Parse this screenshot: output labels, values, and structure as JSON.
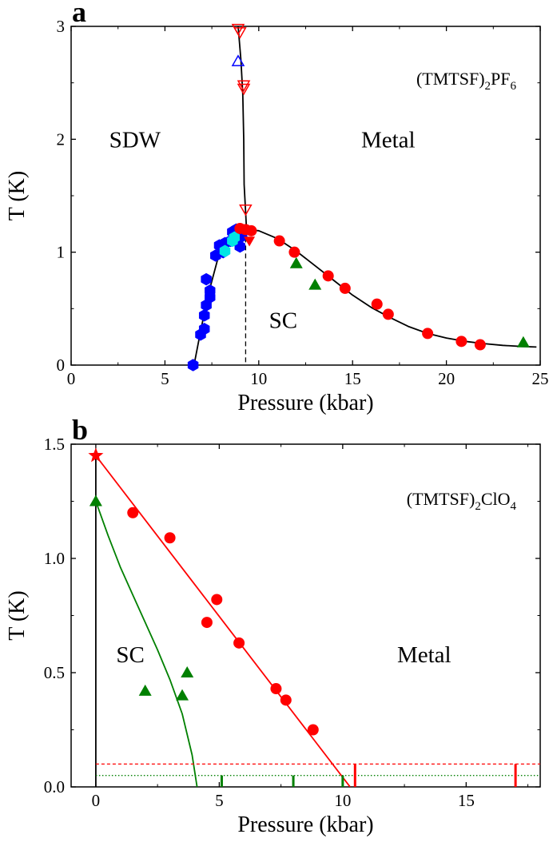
{
  "chart_data": [
    {
      "panel": "a",
      "type": "scatter",
      "compound": {
        "base": "(TMTSF)",
        "sub1": "2",
        "mid": "PF",
        "sub2": "6"
      },
      "xlabel": "Pressure (kbar)",
      "ylabel": "T (K)",
      "xlim": [
        0,
        25
      ],
      "ylim": [
        0,
        3
      ],
      "xticks": [
        0,
        5,
        10,
        15,
        20,
        25
      ],
      "yticks": [
        0,
        1,
        2,
        3
      ],
      "grid": false,
      "regions": [
        {
          "text": "SDW",
          "x": 3.4,
          "y": 2.0
        },
        {
          "text": "Metal",
          "x": 16.9,
          "y": 2.0
        },
        {
          "text": "SC",
          "x": 11.3,
          "y": 0.4
        }
      ],
      "series": [
        {
          "marker": "hexagon",
          "color": "#0000ff",
          "points": [
            [
              6.5,
              0.0
            ],
            [
              6.9,
              0.27
            ],
            [
              7.1,
              0.32
            ],
            [
              7.1,
              0.44
            ],
            [
              7.2,
              0.53
            ],
            [
              7.4,
              0.6
            ],
            [
              7.2,
              0.76
            ],
            [
              7.4,
              0.66
            ],
            [
              7.7,
              0.97
            ],
            [
              7.9,
              1.06
            ],
            [
              8.2,
              1.08
            ],
            [
              8.1,
              1.0
            ],
            [
              8.5,
              1.1
            ],
            [
              8.6,
              1.18
            ],
            [
              8.8,
              1.2
            ],
            [
              9.0,
              1.05
            ],
            [
              9.0,
              1.13
            ],
            [
              9.1,
              1.15
            ]
          ]
        },
        {
          "marker": "hexagon",
          "color": "#00e5e5",
          "points": [
            [
              8.2,
              1.01
            ],
            [
              8.6,
              1.1
            ],
            [
              8.7,
              1.13
            ]
          ]
        },
        {
          "marker": "circle",
          "color": "#ff0000",
          "points": [
            [
              9.0,
              1.21
            ],
            [
              9.3,
              1.2
            ],
            [
              9.6,
              1.19
            ],
            [
              11.1,
              1.1
            ],
            [
              11.9,
              1.0
            ],
            [
              13.7,
              0.79
            ],
            [
              14.6,
              0.68
            ],
            [
              16.3,
              0.54
            ],
            [
              16.9,
              0.45
            ],
            [
              19.0,
              0.28
            ],
            [
              20.8,
              0.21
            ],
            [
              21.8,
              0.18
            ]
          ]
        },
        {
          "marker": "triangle-down",
          "color": "#ff0000",
          "points": [
            [
              9.5,
              1.1
            ]
          ]
        },
        {
          "marker": "triangle-down-open",
          "color": "#ff0000",
          "points": [
            [
              8.9,
              2.98
            ],
            [
              9.0,
              2.95
            ],
            [
              9.2,
              2.48
            ],
            [
              9.2,
              2.45
            ],
            [
              9.3,
              1.38
            ]
          ]
        },
        {
          "marker": "triangle-up-open",
          "color": "#0000ff",
          "points": [
            [
              8.9,
              2.69
            ]
          ]
        },
        {
          "marker": "triangle-up",
          "color": "#008000",
          "points": [
            [
              12.0,
              0.9
            ],
            [
              13.0,
              0.71
            ],
            [
              24.1,
              0.2
            ]
          ]
        }
      ],
      "curves": [
        {
          "style": "solid",
          "color": "#000000",
          "points": [
            [
              6.55,
              0.0
            ],
            [
              6.9,
              0.3
            ],
            [
              7.3,
              0.62
            ],
            [
              7.8,
              0.93
            ],
            [
              8.3,
              1.08
            ],
            [
              8.8,
              1.16
            ],
            [
              9.3,
              1.2
            ]
          ]
        },
        {
          "style": "solid",
          "color": "#000000",
          "points": [
            [
              8.9,
              3.0
            ],
            [
              9.05,
              2.7
            ],
            [
              9.15,
              2.4
            ],
            [
              9.2,
              2.0
            ],
            [
              9.22,
              1.6
            ],
            [
              9.3,
              1.35
            ],
            [
              9.35,
              1.2
            ]
          ]
        },
        {
          "style": "solid",
          "color": "#000000",
          "points": [
            [
              9.3,
              1.2
            ],
            [
              10.0,
              1.19
            ],
            [
              11.0,
              1.12
            ],
            [
              12.0,
              1.01
            ],
            [
              13.0,
              0.88
            ],
            [
              14.0,
              0.75
            ],
            [
              15.0,
              0.62
            ],
            [
              16.0,
              0.51
            ],
            [
              17.0,
              0.42
            ],
            [
              18.0,
              0.34
            ],
            [
              19.0,
              0.28
            ],
            [
              20.0,
              0.24
            ],
            [
              21.0,
              0.21
            ],
            [
              22.0,
              0.19
            ],
            [
              23.0,
              0.175
            ],
            [
              24.0,
              0.165
            ],
            [
              24.8,
              0.16
            ]
          ]
        },
        {
          "style": "dashed",
          "color": "#000000",
          "points": [
            [
              9.3,
              1.2
            ],
            [
              9.3,
              0.0
            ]
          ]
        }
      ]
    },
    {
      "panel": "b",
      "type": "scatter",
      "compound": {
        "base": "(TMTSF)",
        "sub1": "2",
        "mid": "ClO",
        "sub2": "4"
      },
      "xlabel": "Pressure (kbar)",
      "ylabel": "T (K)",
      "xlim": [
        -1,
        18
      ],
      "ylim": [
        0,
        1.5
      ],
      "xticks": [
        0,
        5,
        10,
        15
      ],
      "yticks": [
        0.0,
        0.5,
        1.0,
        1.5
      ],
      "ytick_labels": [
        "0.0",
        "0.5",
        "1.0",
        "1.5"
      ],
      "grid": false,
      "regions": [
        {
          "text": "SC",
          "x": 1.4,
          "y": 0.58
        },
        {
          "text": "Metal",
          "x": 13.3,
          "y": 0.58
        }
      ],
      "series": [
        {
          "marker": "star",
          "color": "#ff0000",
          "points": [
            [
              0.0,
              1.45
            ]
          ]
        },
        {
          "marker": "circle",
          "color": "#ff0000",
          "points": [
            [
              1.5,
              1.2
            ],
            [
              3.0,
              1.09
            ],
            [
              4.5,
              0.72
            ],
            [
              4.9,
              0.82
            ],
            [
              5.8,
              0.63
            ],
            [
              7.3,
              0.43
            ],
            [
              7.7,
              0.38
            ],
            [
              8.8,
              0.25
            ]
          ]
        },
        {
          "marker": "triangle-up",
          "color": "#008000",
          "points": [
            [
              0.0,
              1.25
            ],
            [
              2.0,
              0.42
            ],
            [
              3.5,
              0.4
            ],
            [
              3.7,
              0.5
            ]
          ]
        }
      ],
      "curves": [
        {
          "style": "solid",
          "color": "#ff0000",
          "points": [
            [
              0.0,
              1.45
            ],
            [
              10.3,
              0.0
            ]
          ]
        },
        {
          "style": "solid",
          "color": "#008000",
          "points": [
            [
              0.0,
              1.25
            ],
            [
              0.5,
              1.1
            ],
            [
              1.0,
              0.96
            ],
            [
              1.5,
              0.84
            ],
            [
              2.0,
              0.72
            ],
            [
              2.5,
              0.6
            ],
            [
              3.0,
              0.47
            ],
            [
              3.5,
              0.32
            ],
            [
              3.9,
              0.14
            ],
            [
              4.1,
              0.0
            ]
          ]
        },
        {
          "style": "solid",
          "color": "#000000",
          "points": [
            [
              0.0,
              1.45
            ],
            [
              0.0,
              0.0
            ]
          ]
        },
        {
          "style": "dashed",
          "color": "#ff0000",
          "points": [
            [
              0.0,
              0.1
            ],
            [
              18.0,
              0.1
            ]
          ]
        },
        {
          "style": "dotted",
          "color": "#008000",
          "points": [
            [
              0.0,
              0.05
            ],
            [
              18.0,
              0.05
            ]
          ]
        }
      ],
      "bar_marks": [
        {
          "color": "#ff0000",
          "x": 10.5,
          "y_top": 0.1
        },
        {
          "color": "#ff0000",
          "x": 17.0,
          "y_top": 0.1
        },
        {
          "color": "#008000",
          "x": 5.1,
          "y_top": 0.05
        },
        {
          "color": "#008000",
          "x": 8.0,
          "y_top": 0.05
        },
        {
          "color": "#008000",
          "x": 10.0,
          "y_top": 0.05
        }
      ]
    }
  ]
}
